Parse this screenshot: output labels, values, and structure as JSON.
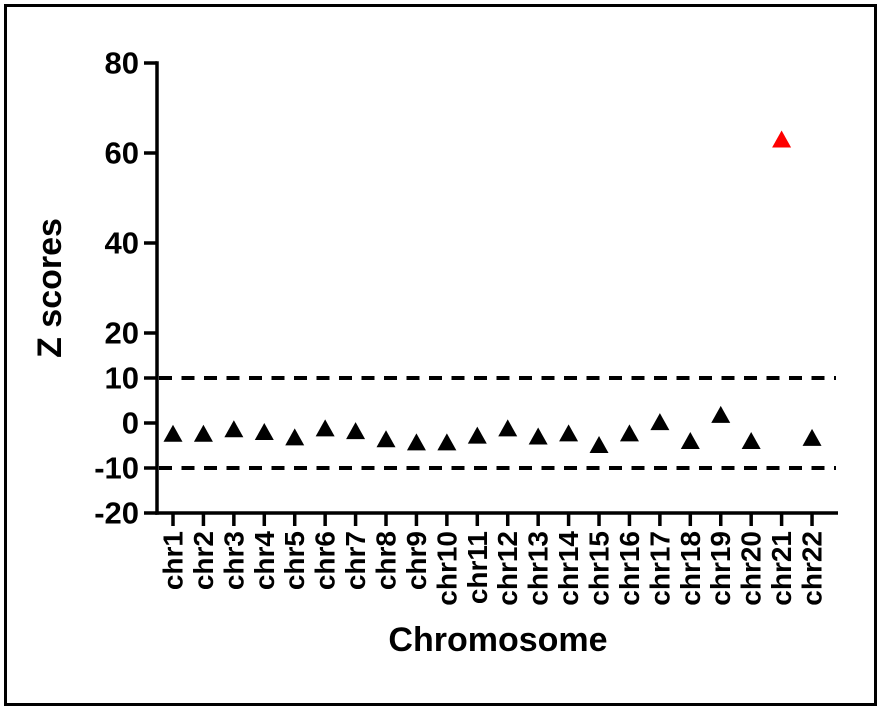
{
  "figure": {
    "background_color": "#ffffff",
    "border_color": "#000000"
  },
  "chart_data": {
    "type": "scatter",
    "title": "",
    "xlabel": "Chromosome",
    "ylabel": "Z scores",
    "ylim": [
      -20,
      80
    ],
    "grid": false,
    "legend": "none",
    "marker": "triangle-up",
    "marker_color": "#000000",
    "highlight_category": "chr21",
    "highlight_color": "#fe0000",
    "y_ticks": [
      {
        "value": 80,
        "label": "80"
      },
      {
        "value": 60,
        "label": "60"
      },
      {
        "value": 40,
        "label": "40"
      },
      {
        "value": 20,
        "label": "20"
      },
      {
        "value": 10,
        "label": "10"
      },
      {
        "value": 0,
        "label": "0"
      },
      {
        "value": -10,
        "label": "-10"
      },
      {
        "value": -20,
        "label": "-20"
      }
    ],
    "threshold_lines": {
      "values": [
        10,
        -10
      ],
      "style": "dashed",
      "color": "#000000"
    },
    "categories": [
      "chr1",
      "chr2",
      "chr3",
      "chr4",
      "chr5",
      "chr6",
      "chr7",
      "chr8",
      "chr9",
      "chr10",
      "chr11",
      "chr12",
      "chr13",
      "chr14",
      "chr15",
      "chr16",
      "chr17",
      "chr18",
      "chr19",
      "chr20",
      "chr21",
      "chr22"
    ],
    "series": [
      {
        "name": "Z scores",
        "values": [
          -2.4,
          -2.4,
          -1.4,
          -2.0,
          -3.2,
          -1.2,
          -1.8,
          -3.6,
          -4.3,
          -4.3,
          -2.8,
          -1.2,
          -3.0,
          -2.3,
          -4.9,
          -2.3,
          0.2,
          -4.0,
          1.8,
          -4.0,
          63.0,
          -3.3
        ]
      }
    ]
  }
}
